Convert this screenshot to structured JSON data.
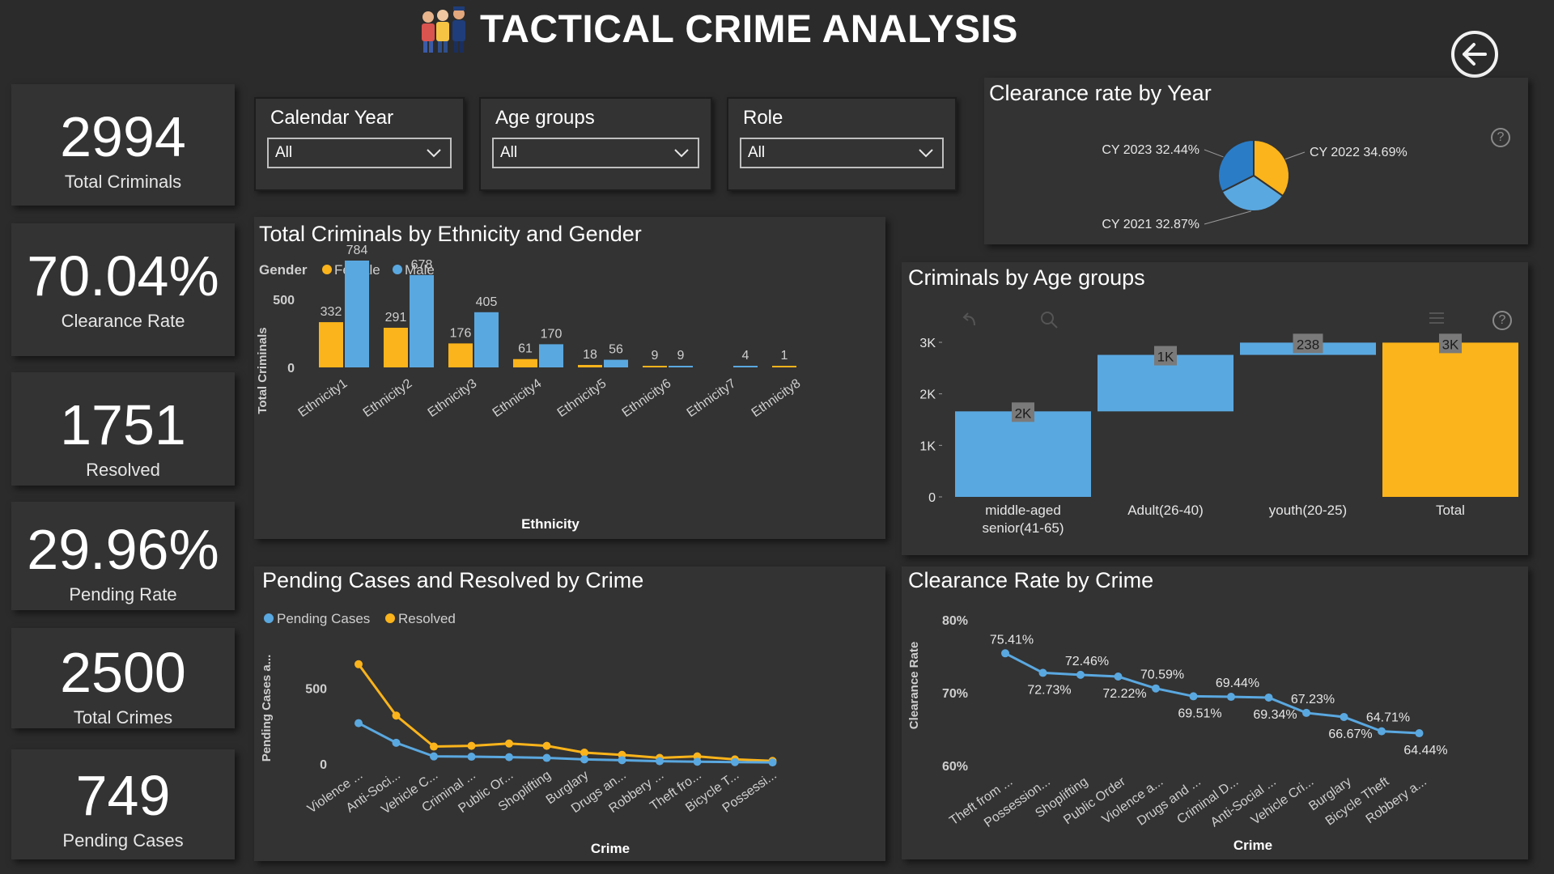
{
  "header": {
    "title": "TACTICAL CRIME ANALYSIS",
    "logo_icon": "police-people-icon"
  },
  "kpis": [
    {
      "value": "2994",
      "label": "Total Criminals"
    },
    {
      "value": "70.04%",
      "label": "Clearance Rate"
    },
    {
      "value": "1751",
      "label": "Resolved"
    },
    {
      "value": "29.96%",
      "label": "Pending Rate"
    },
    {
      "value": "2500",
      "label": "Total Crimes"
    },
    {
      "value": "749",
      "label": "Pending Cases"
    }
  ],
  "slicers": [
    {
      "title": "Calendar Year",
      "value": "All"
    },
    {
      "title": "Age groups",
      "value": "All"
    },
    {
      "title": "Role",
      "value": "All"
    }
  ],
  "colors": {
    "female": "#fbb41b",
    "male": "#5aa8e0",
    "resolved": "#fbb41b",
    "pending": "#5aa8e0",
    "pie_dark": "#2a7cc7",
    "background": "#2b2b2b",
    "panel": "#333333"
  },
  "chart_data": [
    {
      "id": "ethnicity_gender",
      "type": "bar",
      "title": "Total Criminals by Ethnicity and Gender",
      "legend_title": "Gender",
      "xlabel": "Ethnicity",
      "ylabel": "Total Criminals",
      "yticks": [
        "500",
        "0"
      ],
      "ylim": [
        0,
        784
      ],
      "categories": [
        "Ethnicity1",
        "Ethnicity2",
        "Ethnicity3",
        "Ethnicity4",
        "Ethnicity5",
        "Ethnicity6",
        "Ethnicity7",
        "Ethnicity8"
      ],
      "series": [
        {
          "name": "Female",
          "values": [
            332,
            291,
            176,
            61,
            18,
            9,
            null,
            1
          ]
        },
        {
          "name": "Male",
          "values": [
            784,
            678,
            405,
            170,
            56,
            9,
            4,
            null
          ]
        }
      ]
    },
    {
      "id": "clearance_by_year",
      "type": "pie",
      "title": "Clearance rate by Year",
      "slices": [
        {
          "label": "CY 2022",
          "value": 34.69,
          "display": "34.69%"
        },
        {
          "label": "CY 2021",
          "value": 32.87,
          "display": "32.87%"
        },
        {
          "label": "CY 2023",
          "value": 32.44,
          "display": "32.44%"
        }
      ]
    },
    {
      "id": "age_groups",
      "type": "bar",
      "subtype": "waterfall",
      "title": "Criminals by Age groups",
      "yticks": [
        "3K",
        "2K",
        "1K",
        "0"
      ],
      "ylim": [
        0,
        3000
      ],
      "categories": [
        "middle-aged senior(41-65)",
        "Adult(26-40)",
        "youth(20-25)",
        "Total"
      ],
      "values": [
        1660,
        1096,
        238,
        2994
      ],
      "data_labels": [
        "2K",
        "1K",
        "238",
        "3K"
      ]
    },
    {
      "id": "pending_resolved",
      "type": "line",
      "title": "Pending Cases and Resolved by Crime",
      "xlabel": "Crime",
      "ylabel": "Pending Cases a...",
      "yticks": [
        "500",
        "0"
      ],
      "ylim": [
        0,
        600
      ],
      "categories": [
        "Violence ...",
        "Anti-Soci...",
        "Vehicle C...",
        "Criminal ...",
        "Public Or...",
        "Shoplifting",
        "Burglary",
        "Drugs an...",
        "Robbery ...",
        "Theft fro...",
        "Bicycle T...",
        "Possessi..."
      ],
      "series": [
        {
          "name": "Pending Cases",
          "values": [
            270,
            140,
            50,
            48,
            45,
            40,
            30,
            25,
            18,
            15,
            12,
            10
          ]
        },
        {
          "name": "Resolved",
          "values": [
            660,
            320,
            115,
            120,
            135,
            120,
            75,
            60,
            40,
            50,
            30,
            20
          ]
        }
      ]
    },
    {
      "id": "clearance_by_crime",
      "type": "line",
      "title": "Clearance Rate by Crime",
      "xlabel": "Crime",
      "ylabel": "Clearance Rate",
      "yticks": [
        "80%",
        "70%",
        "60%"
      ],
      "ylim": [
        60,
        80
      ],
      "categories": [
        "Theft from ...",
        "Possession...",
        "Shoplifting",
        "Public Order",
        "Violence a...",
        "Drugs and ...",
        "Criminal D...",
        "Anti-Social ...",
        "Vehicle Cri...",
        "Burglary",
        "Bicycle Theft",
        "Robbery a..."
      ],
      "values": [
        75.41,
        72.73,
        72.46,
        72.22,
        70.59,
        69.51,
        69.44,
        69.34,
        67.23,
        66.67,
        64.71,
        64.44
      ],
      "data_labels": [
        "75.41%",
        "72.73%",
        "72.46%",
        "72.22%",
        "70.59%",
        "69.51%",
        "69.44%",
        "69.34%",
        "67.23%",
        "66.67%",
        "64.71%",
        "64.44%"
      ]
    }
  ]
}
